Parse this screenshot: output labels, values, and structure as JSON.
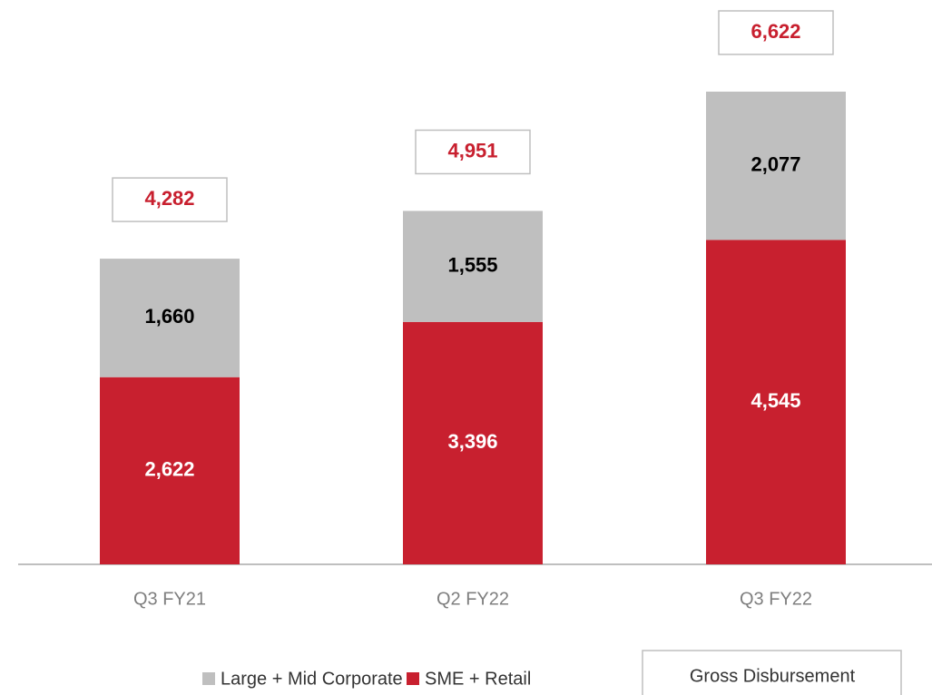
{
  "chart_data": {
    "type": "stacked-bar",
    "categories": [
      "Q3 FY21",
      "Q2 FY22",
      "Q3 FY22"
    ],
    "series": [
      {
        "name": "SME + Retail",
        "color": "#c8202f",
        "values": [
          2622,
          3396,
          4545
        ],
        "value_labels": [
          "2,622",
          "3,396",
          "4,545"
        ]
      },
      {
        "name": "Large + Mid Corporate",
        "color": "#bfbfbf",
        "values": [
          1660,
          1555,
          2077
        ],
        "value_labels": [
          "1,660",
          "1,555",
          "2,077"
        ]
      }
    ],
    "totals_name": "Gross Disbursement",
    "totals": [
      4282,
      4951,
      6622
    ],
    "totals_labels": [
      "4,282",
      "4,951",
      "6,622"
    ],
    "totals_color": "#c8202f"
  }
}
